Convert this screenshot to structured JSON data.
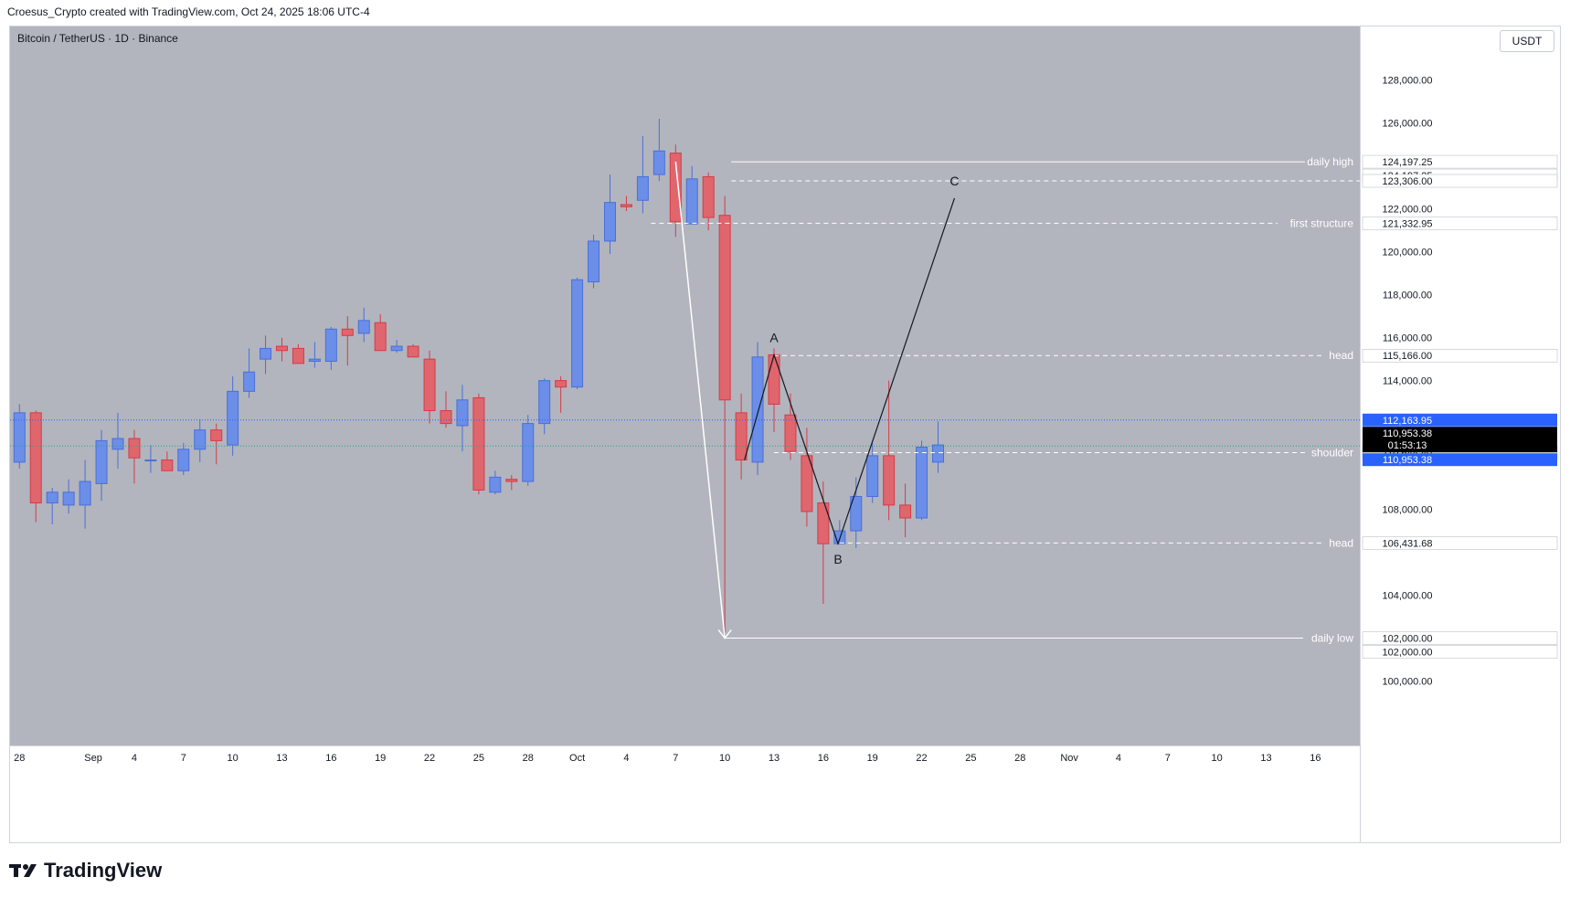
{
  "header": {
    "attribution": "Croesus_Crypto created with TradingView.com, Oct 24, 2025 18:06 UTC-4"
  },
  "chart_header": {
    "symbol": "Bitcoin / TetherUS · 1D · Binance",
    "currency": "USDT"
  },
  "footer": {
    "brand": "TradingView"
  },
  "colors": {
    "background": "#b2b5be",
    "up": "#6b8ee8",
    "down": "#e0666e",
    "upWick": "#4a6fd8",
    "downWick": "#d63b45",
    "axis": "#ffffff"
  },
  "chart_data": {
    "type": "candlestick",
    "x_tick_labels": [
      "28",
      "Sep",
      "4",
      "7",
      "10",
      "13",
      "16",
      "19",
      "22",
      "25",
      "28",
      "Oct",
      "4",
      "7",
      "10",
      "13",
      "16",
      "19",
      "22",
      "25",
      "28",
      "Nov",
      "4",
      "7",
      "10",
      "13",
      "16"
    ],
    "y_tick_labels": [
      "128,000.00",
      "126,000.00",
      "122,000.00",
      "120,000.00",
      "118,000.00",
      "116,000.00",
      "114,000.00",
      "108,000.00",
      "104,000.00",
      "100,000.00"
    ],
    "ylim": [
      97000,
      130500
    ],
    "candles": [
      {
        "o": 110200,
        "h": 112900,
        "l": 109900,
        "c": 112500
      },
      {
        "o": 112500,
        "h": 112600,
        "l": 107400,
        "c": 108300
      },
      {
        "o": 108300,
        "h": 109000,
        "l": 107300,
        "c": 108800
      },
      {
        "o": 108200,
        "h": 109400,
        "l": 107800,
        "c": 108800
      },
      {
        "o": 108200,
        "h": 110300,
        "l": 107100,
        "c": 109300
      },
      {
        "o": 109200,
        "h": 111700,
        "l": 108400,
        "c": 111200
      },
      {
        "o": 110800,
        "h": 112500,
        "l": 109900,
        "c": 111300
      },
      {
        "o": 111300,
        "h": 111700,
        "l": 109200,
        "c": 110400
      },
      {
        "o": 110300,
        "h": 111000,
        "l": 109700,
        "c": 110300
      },
      {
        "o": 110300,
        "h": 110700,
        "l": 109800,
        "c": 109800
      },
      {
        "o": 109800,
        "h": 111100,
        "l": 109600,
        "c": 110800
      },
      {
        "o": 110800,
        "h": 112200,
        "l": 110200,
        "c": 111700
      },
      {
        "o": 111700,
        "h": 112000,
        "l": 110100,
        "c": 111200
      },
      {
        "o": 111000,
        "h": 114200,
        "l": 110500,
        "c": 113500
      },
      {
        "o": 113500,
        "h": 115500,
        "l": 113200,
        "c": 114400
      },
      {
        "o": 115000,
        "h": 116100,
        "l": 114300,
        "c": 115500
      },
      {
        "o": 115600,
        "h": 116000,
        "l": 114900,
        "c": 115400
      },
      {
        "o": 115500,
        "h": 115700,
        "l": 114800,
        "c": 114800
      },
      {
        "o": 114900,
        "h": 115800,
        "l": 114600,
        "c": 115000
      },
      {
        "o": 114900,
        "h": 116500,
        "l": 114500,
        "c": 116400
      },
      {
        "o": 116400,
        "h": 117000,
        "l": 114700,
        "c": 116100
      },
      {
        "o": 116200,
        "h": 117400,
        "l": 115800,
        "c": 116800
      },
      {
        "o": 116700,
        "h": 117100,
        "l": 115500,
        "c": 115400
      },
      {
        "o": 115400,
        "h": 115900,
        "l": 115300,
        "c": 115600
      },
      {
        "o": 115600,
        "h": 115700,
        "l": 115100,
        "c": 115100
      },
      {
        "o": 115000,
        "h": 115400,
        "l": 112000,
        "c": 112600
      },
      {
        "o": 112600,
        "h": 113500,
        "l": 111800,
        "c": 112000
      },
      {
        "o": 111900,
        "h": 113800,
        "l": 110700,
        "c": 113100
      },
      {
        "o": 113200,
        "h": 113400,
        "l": 108700,
        "c": 108900
      },
      {
        "o": 108800,
        "h": 109800,
        "l": 108700,
        "c": 109500
      },
      {
        "o": 109400,
        "h": 109600,
        "l": 108900,
        "c": 109300
      },
      {
        "o": 109300,
        "h": 112400,
        "l": 109100,
        "c": 112000
      },
      {
        "o": 112000,
        "h": 114100,
        "l": 111500,
        "c": 114000
      },
      {
        "o": 114000,
        "h": 114200,
        "l": 112500,
        "c": 113700
      },
      {
        "o": 113700,
        "h": 118800,
        "l": 113600,
        "c": 118700
      },
      {
        "o": 118600,
        "h": 120800,
        "l": 118300,
        "c": 120500
      },
      {
        "o": 120500,
        "h": 123600,
        "l": 119900,
        "c": 122300
      },
      {
        "o": 122200,
        "h": 122600,
        "l": 121900,
        "c": 122100
      },
      {
        "o": 122400,
        "h": 125400,
        "l": 121800,
        "c": 123500
      },
      {
        "o": 123600,
        "h": 126200,
        "l": 123300,
        "c": 124700
      },
      {
        "o": 124600,
        "h": 125000,
        "l": 120700,
        "c": 121400
      },
      {
        "o": 121300,
        "h": 124000,
        "l": 121300,
        "c": 123400
      },
      {
        "o": 123500,
        "h": 123700,
        "l": 121000,
        "c": 121600
      },
      {
        "o": 121700,
        "h": 122600,
        "l": 102000,
        "c": 113100
      },
      {
        "o": 112500,
        "h": 113400,
        "l": 109400,
        "c": 110300
      },
      {
        "o": 110200,
        "h": 115800,
        "l": 109600,
        "c": 115100
      },
      {
        "o": 115200,
        "h": 115500,
        "l": 111600,
        "c": 112900
      },
      {
        "o": 112400,
        "h": 113400,
        "l": 110300,
        "c": 110700
      },
      {
        "o": 110500,
        "h": 111800,
        "l": 107200,
        "c": 107900
      },
      {
        "o": 108300,
        "h": 109300,
        "l": 103600,
        "c": 106400
      },
      {
        "o": 106400,
        "h": 107500,
        "l": 106400,
        "c": 107000
      },
      {
        "o": 107000,
        "h": 109500,
        "l": 106200,
        "c": 108600
      },
      {
        "o": 108600,
        "h": 111100,
        "l": 108300,
        "c": 110500
      },
      {
        "o": 110500,
        "h": 114000,
        "l": 107500,
        "c": 108200
      },
      {
        "o": 108200,
        "h": 109200,
        "l": 106700,
        "c": 107600
      },
      {
        "o": 107600,
        "h": 111200,
        "l": 107500,
        "c": 110900
      },
      {
        "o": 110200,
        "h": 112100,
        "l": 109700,
        "c": 111000
      }
    ],
    "levels": [
      {
        "label": "daily high",
        "value": 124197.25,
        "style": "solid",
        "axis_labels": [
          "124,197.25",
          "124,197.25"
        ]
      },
      {
        "label": "",
        "value": 123306.0,
        "style": "dashed",
        "axis_labels": [
          "123,306.00"
        ]
      },
      {
        "label": "first structure",
        "value": 121332.95,
        "style": "dashed",
        "axis_labels": [
          "121,332.95"
        ]
      },
      {
        "label": "head",
        "value": 115166.0,
        "style": "dashed",
        "axis_labels": [
          "115,166.00"
        ]
      },
      {
        "label": "shoulder",
        "value": 110644.4,
        "style": "dashed",
        "axis_labels": [
          "110,644.40"
        ]
      },
      {
        "label": "head",
        "value": 106431.68,
        "style": "dashed",
        "axis_labels": [
          "106,431.68"
        ]
      },
      {
        "label": "daily low",
        "value": 102000.0,
        "style": "solid",
        "axis_labels": [
          "102,000.00",
          "102,000.00"
        ]
      }
    ],
    "price_marks": {
      "high_mark": "112,163.95",
      "last_price": "110,953.38",
      "countdown": "01:53:13",
      "last_price_blue": "110,953.38"
    },
    "abc": [
      {
        "label": "",
        "x_index": 44.2,
        "y": 110300
      },
      {
        "label": "A",
        "x_index": 46.0,
        "y": 115200
      },
      {
        "label": "B",
        "x_index": 49.9,
        "y": 106400
      },
      {
        "label": "C",
        "x_index": 57.0,
        "y": 122500
      }
    ],
    "drop_arrow": {
      "from": [
        40.0,
        124200
      ],
      "to": [
        43.0,
        102000
      ]
    }
  }
}
